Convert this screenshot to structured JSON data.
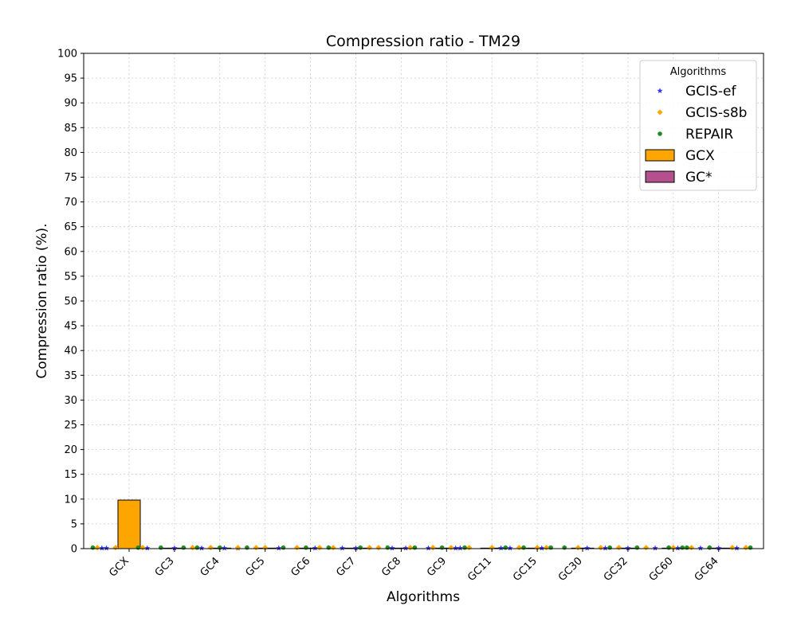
{
  "chart_data": {
    "type": "bar",
    "title": "Compression ratio -  TM29",
    "xlabel": "Algorithms",
    "ylabel": "Compression ratio (%).",
    "categories": [
      "GCX",
      "GC3",
      "GC4",
      "GC5",
      "GC6",
      "GC7",
      "GC8",
      "GC9",
      "GC11",
      "GC15",
      "GC30",
      "GC32",
      "GC60",
      "GC64"
    ],
    "ylim": [
      0,
      100
    ],
    "yticks": [
      0,
      5,
      10,
      15,
      20,
      25,
      30,
      35,
      40,
      45,
      50,
      55,
      60,
      65,
      70,
      75,
      80,
      85,
      90,
      95,
      100
    ],
    "grid": true,
    "legend": {
      "title": "Algorithms",
      "placement": "top-right",
      "entries": [
        {
          "label": "GCIS-ef",
          "kind": "marker",
          "marker": "star",
          "color": "#3333ff"
        },
        {
          "label": "GCIS-s8b",
          "kind": "marker",
          "marker": "diamond",
          "color": "#ffa500"
        },
        {
          "label": "REPAIR",
          "kind": "marker",
          "marker": "circle",
          "color": "#228b22"
        },
        {
          "label": "GCX",
          "kind": "bar",
          "color": "#ffa500"
        },
        {
          "label": "GC*",
          "kind": "bar",
          "color": "#b5508f"
        }
      ]
    },
    "bars": [
      {
        "name": "GCX",
        "color": "#ffa500",
        "values": [
          9.8,
          0,
          0,
          0,
          0,
          0,
          0,
          0,
          0,
          0,
          0,
          0,
          0,
          0
        ]
      },
      {
        "name": "GC*",
        "color": "#b5508f",
        "values": [
          0,
          0.1,
          0.1,
          0.1,
          0.1,
          0.1,
          0.1,
          0.1,
          0.1,
          0.1,
          0.1,
          0.1,
          0.1,
          0.1
        ]
      }
    ],
    "series": [
      {
        "name": "GCIS-ef",
        "marker": "star",
        "color": "#3333ff",
        "x": [
          -0.6,
          -0.5,
          0.4,
          1.0,
          1.6,
          2.1,
          2.4,
          3.3,
          4.1,
          4.7,
          5.0,
          5.8,
          6.1,
          6.6,
          7.2,
          7.3,
          8.2,
          8.4,
          9.1,
          10.1,
          10.5,
          11.0,
          11.6,
          12.1,
          12.6,
          13.0,
          13.4
        ],
        "y": [
          0.1,
          0.1,
          0.1,
          0.1,
          0.1,
          0.1,
          0.1,
          0.1,
          0.1,
          0.1,
          0.1,
          0.1,
          0.1,
          0.1,
          0.1,
          0.1,
          0.1,
          0.1,
          0.1,
          0.1,
          0.1,
          0.1,
          0.1,
          0.1,
          0.1,
          0.1,
          0.1
        ]
      },
      {
        "name": "GCIS-s8b",
        "marker": "diamond",
        "color": "#ffa500",
        "x": [
          -0.7,
          -0.3,
          0.3,
          1.4,
          1.8,
          2.4,
          2.8,
          3.0,
          3.7,
          4.2,
          4.5,
          5.3,
          5.5,
          6.2,
          6.7,
          7.1,
          7.5,
          8.0,
          8.6,
          9.0,
          9.2,
          9.9,
          10.4,
          10.8,
          11.4,
          12.0,
          12.4,
          13.3,
          13.6
        ],
        "y": [
          0.2,
          0.2,
          0.2,
          0.2,
          0.2,
          0.2,
          0.2,
          0.2,
          0.2,
          0.2,
          0.2,
          0.2,
          0.2,
          0.2,
          0.2,
          0.2,
          0.2,
          0.2,
          0.2,
          0.2,
          0.2,
          0.2,
          0.2,
          0.2,
          0.2,
          0.2,
          0.2,
          0.2,
          0.2
        ]
      },
      {
        "name": "REPAIR",
        "marker": "circle",
        "color": "#228b22",
        "x": [
          -0.8,
          0.2,
          0.7,
          1.2,
          1.5,
          2.0,
          2.6,
          3.4,
          3.9,
          4.4,
          5.1,
          5.7,
          6.3,
          6.9,
          7.4,
          8.3,
          8.7,
          9.3,
          9.6,
          10.6,
          11.2,
          11.9,
          12.2,
          12.3,
          12.8,
          13.7
        ],
        "y": [
          0.2,
          0.2,
          0.2,
          0.2,
          0.2,
          0.2,
          0.2,
          0.2,
          0.2,
          0.2,
          0.2,
          0.2,
          0.2,
          0.2,
          0.2,
          0.2,
          0.2,
          0.2,
          0.2,
          0.2,
          0.2,
          0.2,
          0.2,
          0.2,
          0.2,
          0.2
        ]
      }
    ]
  }
}
